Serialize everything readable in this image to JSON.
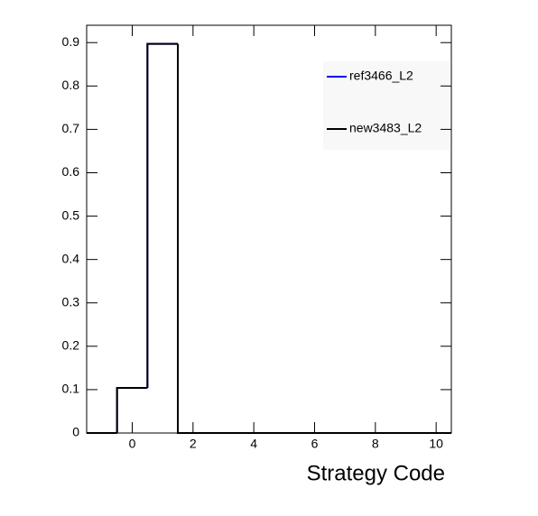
{
  "chart_data": {
    "type": "histogram",
    "x_label": "Strategy Code",
    "bins": [
      -1.5,
      -0.5,
      0.5,
      1.5,
      2.5,
      3.5,
      4.5,
      5.5,
      6.5,
      7.5,
      8.5,
      9.5,
      10.5
    ],
    "series": [
      {
        "name": "ref3466_L2",
        "color": "#0000ff",
        "values": [
          0,
          0.104,
          0.897,
          0,
          0,
          0,
          0,
          0,
          0,
          0,
          0,
          0
        ]
      },
      {
        "name": "new3483_L2",
        "color": "#000000",
        "values": [
          0,
          0.104,
          0.897,
          0,
          0,
          0,
          0,
          0,
          0,
          0,
          0,
          0
        ]
      }
    ],
    "xlim": [
      -1.5,
      10.5
    ],
    "xticks": [
      0,
      2,
      4,
      6,
      8,
      10
    ],
    "ylim": [
      0,
      0.94
    ],
    "yticks": [
      0,
      0.1,
      0.2,
      0.3,
      0.4,
      0.5,
      0.6,
      0.7,
      0.8,
      0.9
    ],
    "legend": "top-right"
  }
}
